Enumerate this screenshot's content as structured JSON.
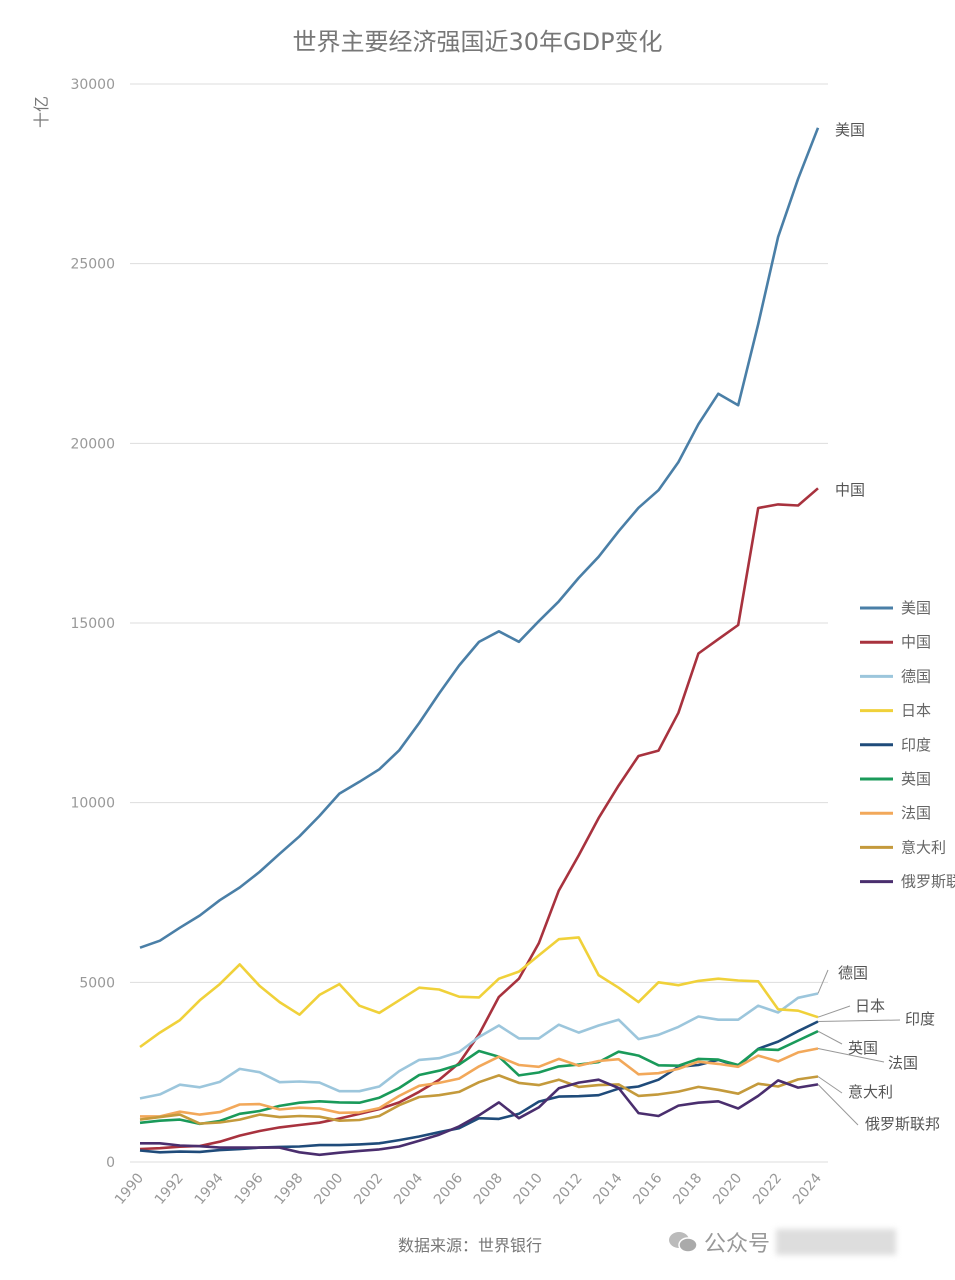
{
  "chart_data": {
    "type": "line",
    "title": "世界主要经济强国近30年GDP变化",
    "ylabel": "十亿",
    "xlabel": "",
    "ylim": [
      0,
      30000
    ],
    "yticks": [
      0,
      5000,
      10000,
      15000,
      20000,
      25000,
      30000
    ],
    "ytick_labels": [
      "0",
      "5000",
      "10000",
      "15000",
      "20000",
      "25000",
      "30000"
    ],
    "xtick_labels": [
      "1990",
      "1992",
      "1994",
      "1996",
      "1998",
      "2000",
      "2002",
      "2004",
      "2006",
      "2008",
      "2010",
      "2012",
      "2014",
      "2016",
      "2018",
      "2020",
      "2022",
      "2024"
    ],
    "x": [
      1990,
      1991,
      1992,
      1993,
      1994,
      1995,
      1996,
      1997,
      1998,
      1999,
      2000,
      2001,
      2002,
      2003,
      2004,
      2005,
      2006,
      2007,
      2008,
      2009,
      2010,
      2011,
      2012,
      2013,
      2014,
      2015,
      2016,
      2017,
      2018,
      2019,
      2020,
      2021,
      2022,
      2023,
      2024
    ],
    "grid": true,
    "legend_placement": "right",
    "series": [
      {
        "name": "美国",
        "color": "#4a7fa7",
        "values": [
          5963,
          6158,
          6520,
          6859,
          7287,
          7640,
          8073,
          8578,
          9063,
          9631,
          10251,
          10582,
          10929,
          11457,
          12217,
          13039,
          13816,
          14474,
          14770,
          14478,
          15049,
          15600,
          16254,
          16843,
          17551,
          18206,
          18695,
          19477,
          20533,
          21381,
          21060,
          23315,
          25744,
          27361,
          28781
        ]
      },
      {
        "name": "中国",
        "color": "#a8323e",
        "values": [
          361,
          383,
          427,
          445,
          564,
          734,
          864,
          962,
          1029,
          1094,
          1211,
          1339,
          1471,
          1660,
          1955,
          2286,
          2752,
          3550,
          4594,
          5102,
          6087,
          7552,
          8532,
          9570,
          10475,
          11300,
          11450,
          12500,
          14150,
          14550,
          14945,
          18200,
          18300,
          18270,
          18750
        ]
      },
      {
        "name": "德国",
        "color": "#9cc6dc",
        "values": [
          1770,
          1880,
          2150,
          2080,
          2230,
          2590,
          2500,
          2220,
          2240,
          2210,
          1970,
          1970,
          2100,
          2530,
          2840,
          2890,
          3060,
          3480,
          3800,
          3440,
          3440,
          3820,
          3600,
          3800,
          3960,
          3420,
          3540,
          3760,
          4050,
          3960,
          3960,
          4350,
          4160,
          4570,
          4690
        ]
      },
      {
        "name": "日本",
        "color": "#f0d13a",
        "values": [
          3200,
          3600,
          3950,
          4500,
          4950,
          5500,
          4900,
          4450,
          4100,
          4650,
          4950,
          4350,
          4150,
          4500,
          4850,
          4800,
          4600,
          4580,
          5100,
          5300,
          5750,
          6200,
          6250,
          5200,
          4850,
          4450,
          5000,
          4920,
          5040,
          5100,
          5050,
          5030,
          4250,
          4210,
          4030
        ]
      },
      {
        "name": "印度",
        "color": "#1f4b7a",
        "values": [
          320,
          270,
          290,
          280,
          330,
          360,
          400,
          420,
          430,
          470,
          470,
          490,
          520,
          610,
          710,
          830,
          940,
          1220,
          1200,
          1340,
          1680,
          1820,
          1830,
          1860,
          2040,
          2100,
          2290,
          2650,
          2700,
          2840,
          2670,
          3150,
          3350,
          3640,
          3910
        ]
      },
      {
        "name": "英国",
        "color": "#1a9a5a",
        "values": [
          1090,
          1150,
          1180,
          1060,
          1140,
          1340,
          1420,
          1560,
          1650,
          1690,
          1660,
          1650,
          1790,
          2060,
          2420,
          2540,
          2710,
          3090,
          2930,
          2410,
          2490,
          2660,
          2710,
          2780,
          3070,
          2960,
          2690,
          2680,
          2870,
          2850,
          2700,
          3140,
          3120,
          3380,
          3640
        ]
      },
      {
        "name": "法国",
        "color": "#f2a85a",
        "values": [
          1270,
          1270,
          1400,
          1320,
          1390,
          1600,
          1610,
          1460,
          1510,
          1490,
          1370,
          1380,
          1500,
          1840,
          2120,
          2200,
          2320,
          2660,
          2930,
          2700,
          2650,
          2870,
          2680,
          2810,
          2860,
          2440,
          2470,
          2590,
          2790,
          2730,
          2650,
          2960,
          2800,
          3050,
          3160
        ]
      },
      {
        "name": "意大利",
        "color": "#c49a3c",
        "values": [
          1180,
          1250,
          1320,
          1070,
          1100,
          1180,
          1320,
          1250,
          1280,
          1260,
          1150,
          1170,
          1280,
          1580,
          1810,
          1860,
          1950,
          2220,
          2410,
          2200,
          2140,
          2290,
          2090,
          2140,
          2160,
          1840,
          1880,
          1960,
          2090,
          2010,
          1900,
          2180,
          2100,
          2300,
          2380
        ]
      },
      {
        "name": "俄罗斯联邦",
        "color": "#4a2e6e",
        "values": [
          520,
          520,
          460,
          440,
          400,
          400,
          400,
          400,
          270,
          200,
          260,
          310,
          350,
          430,
          590,
          760,
          990,
          1300,
          1660,
          1220,
          1520,
          2050,
          2210,
          2290,
          2060,
          1360,
          1280,
          1570,
          1650,
          1690,
          1490,
          1840,
          2270,
          2070,
          2160
        ]
      }
    ]
  },
  "footer": {
    "source": "数据来源：世界银行",
    "watermark": "公众号"
  }
}
